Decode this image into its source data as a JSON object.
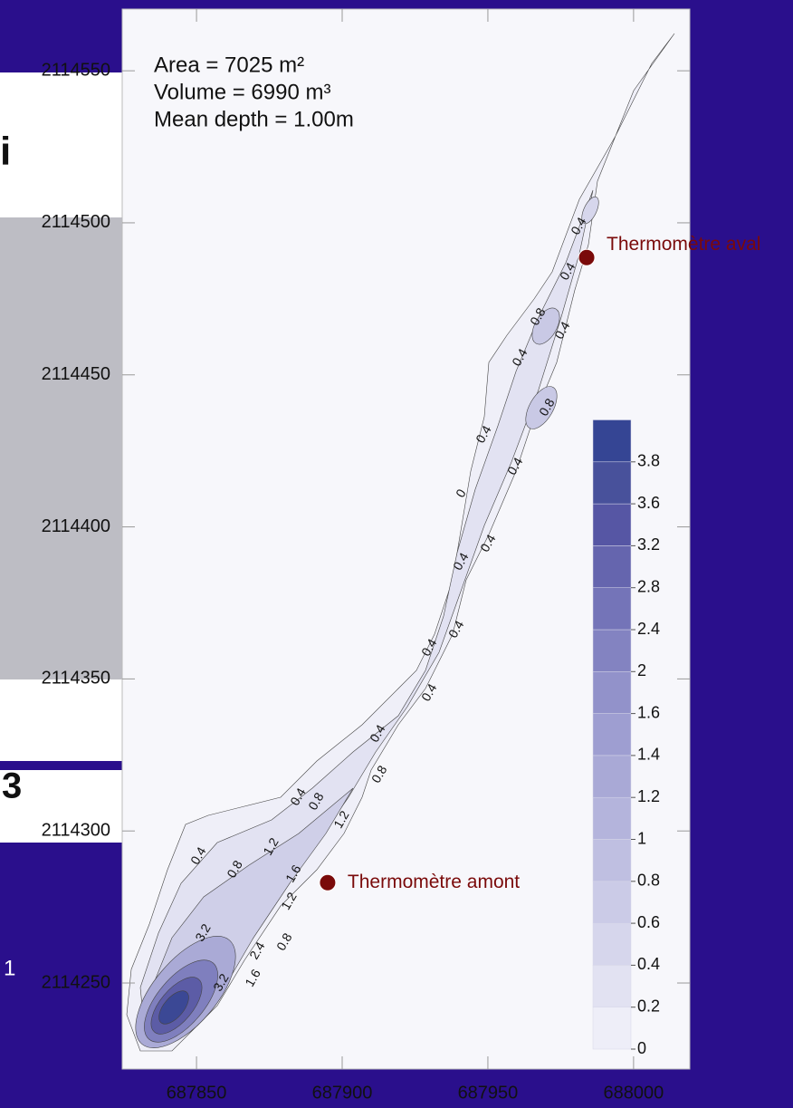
{
  "chart_data": {
    "type": "contour",
    "annotations": [
      "Area = 7025 m²",
      "Volume = 6990 m³",
      "Mean depth = 1.00m"
    ],
    "xlim": [
      687824.5,
      688019.3
    ],
    "ylim": [
      2114221.7,
      2114570.3
    ],
    "xticks": [
      687850,
      687900,
      687950,
      688000
    ],
    "yticks": [
      2114250,
      2114300,
      2114350,
      2114400,
      2114450,
      2114500,
      2114550
    ],
    "markers": [
      {
        "label": "Thermomètre aval",
        "x": 687983.9,
        "y": 2114488.6,
        "color": "#7a0a0a"
      },
      {
        "label": "Thermomètre amont",
        "x": 687895.0,
        "y": 2114283.0,
        "color": "#7a0a0a"
      }
    ],
    "contour_labels": [
      {
        "value": 0.4,
        "x": 687981.4,
        "y": 2114498.8
      },
      {
        "value": 0.4,
        "x": 687977.6,
        "y": 2114483.9
      },
      {
        "value": 0.8,
        "x": 687967.4,
        "y": 2114469.0
      },
      {
        "value": 0.4,
        "x": 687975.8,
        "y": 2114464.5
      },
      {
        "value": 0.4,
        "x": 687961.2,
        "y": 2114455.6
      },
      {
        "value": 0.8,
        "x": 687970.5,
        "y": 2114439.2
      },
      {
        "value": 0.4,
        "x": 687948.8,
        "y": 2114430.3
      },
      {
        "value": 0.4,
        "x": 687959.6,
        "y": 2114419.8
      },
      {
        "value": 0,
        "x": 687941.0,
        "y": 2114410.9
      },
      {
        "value": 0.4,
        "x": 687941.0,
        "y": 2114388.5
      },
      {
        "value": 0.4,
        "x": 687950.3,
        "y": 2114394.5
      },
      {
        "value": 0.4,
        "x": 687930.1,
        "y": 2114360.2
      },
      {
        "value": 0.4,
        "x": 687939.4,
        "y": 2114366.2
      },
      {
        "value": 0.4,
        "x": 687930.1,
        "y": 2114345.4
      },
      {
        "value": 0.4,
        "x": 687912.4,
        "y": 2114331.9
      },
      {
        "value": 0.8,
        "x": 687913.0,
        "y": 2114318.5
      },
      {
        "value": 0.4,
        "x": 687885.1,
        "y": 2114311.1
      },
      {
        "value": 0.8,
        "x": 687891.3,
        "y": 2114309.6
      },
      {
        "value": 1.2,
        "x": 687900.0,
        "y": 2114303.6
      },
      {
        "value": 1.2,
        "x": 687875.8,
        "y": 2114294.7
      },
      {
        "value": 0.8,
        "x": 687863.4,
        "y": 2114287.3
      },
      {
        "value": 0.4,
        "x": 687850.9,
        "y": 2114291.7
      },
      {
        "value": 1.6,
        "x": 687883.5,
        "y": 2114285.8
      },
      {
        "value": 1.2,
        "x": 687882.0,
        "y": 2114276.8
      },
      {
        "value": 0.8,
        "x": 687880.4,
        "y": 2114263.4
      },
      {
        "value": 2.4,
        "x": 687871.1,
        "y": 2114260.5
      },
      {
        "value": 1.6,
        "x": 687869.6,
        "y": 2114251.5
      },
      {
        "value": 3.2,
        "x": 687858.7,
        "y": 2114250.0
      },
      {
        "value": 3.2,
        "x": 687852.5,
        "y": 2114266.4
      }
    ],
    "colorbar": {
      "levels": [
        0,
        0.2,
        0.4,
        0.6,
        0.8,
        1,
        1.2,
        1.4,
        1.6,
        2,
        2.4,
        2.8,
        3.2,
        3.6,
        3.8
      ],
      "colors": [
        "#eeeef8",
        "#e2e2f2",
        "#d6d6ec",
        "#cbcbe7",
        "#bfbfe1",
        "#b4b4dc",
        "#a9a9d6",
        "#9e9ed1",
        "#9292ca",
        "#8383c1",
        "#7474b8",
        "#6565ae",
        "#5656a4",
        "#48519b",
        "#354594"
      ]
    },
    "slide_fragments": [
      "i",
      "3",
      "1"
    ]
  }
}
